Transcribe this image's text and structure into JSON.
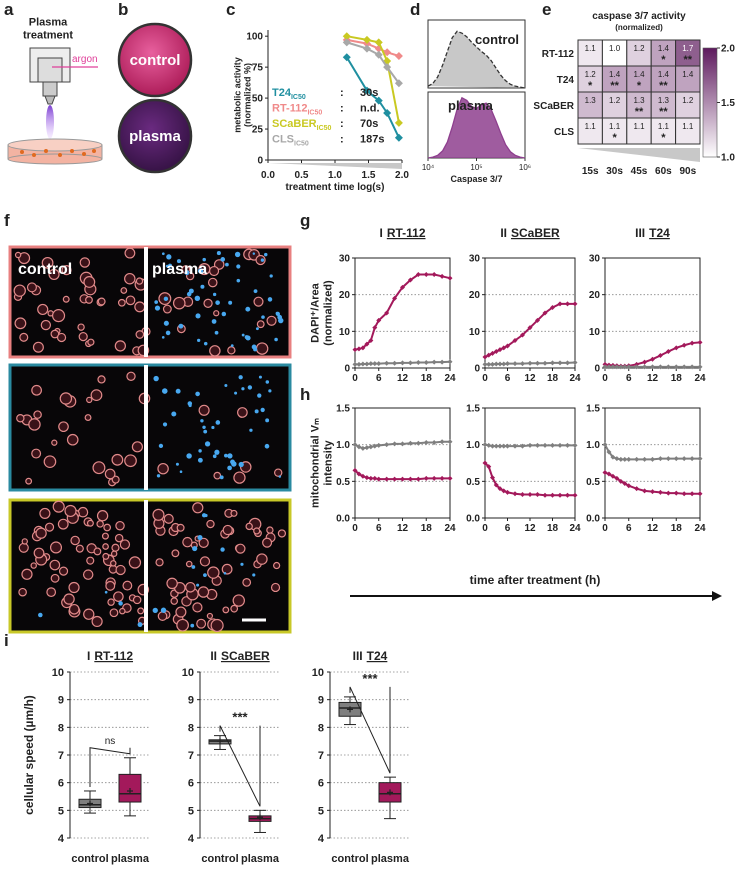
{
  "figure": {
    "panel_labels": [
      "a",
      "b",
      "c",
      "d",
      "e",
      "f",
      "g",
      "h",
      "i"
    ],
    "plasma_device": {
      "title": "Plasma treatment",
      "gas": "argon"
    },
    "dishes": [
      "control",
      "plasma"
    ],
    "micrographs": [
      "control",
      "plasma"
    ],
    "time_axis_label": "time after treatment (h)"
  },
  "chart_data": [
    {
      "type": "line",
      "xlabel": "treatment time log(s)",
      "ylabel": "metabolic activity (normalized %)",
      "x": [
        1.176,
        1.477,
        1.653,
        1.778,
        1.954
      ],
      "series": [
        {
          "name": "T24",
          "color": "#1f8fa0",
          "values": [
            83,
            56,
            48,
            38,
            18
          ],
          "ic50": "30s"
        },
        {
          "name": "RT-112",
          "color": "#f08a8a",
          "values": [
            97,
            94,
            90,
            87,
            84
          ],
          "ic50": "n.d."
        },
        {
          "name": "SCaBER",
          "color": "#c9c922",
          "values": [
            100,
            97,
            95,
            80,
            30
          ],
          "ic50": "70s"
        },
        {
          "name": "CLS",
          "color": "#a8a8a8",
          "values": [
            95,
            90,
            85,
            75,
            62
          ],
          "ic50": "187s"
        }
      ],
      "ic50_subscript": "IC50",
      "separator": ":",
      "xlim": [
        0,
        2
      ],
      "xticks": [
        {
          "value": 0,
          "label": "0.0"
        },
        0.5,
        {
          "value": 1,
          "label": "1.0"
        },
        1.5,
        {
          "value": 2,
          "label": "2.0"
        }
      ],
      "ylim": [
        0,
        105
      ],
      "yticks": [
        0,
        25,
        50,
        75,
        100
      ],
      "grid": false
    },
    {
      "type": "area",
      "xlabel": "Caspase 3/7",
      "xscale": "log",
      "xlim": [
        10000,
        1000000
      ],
      "xticks": [
        {
          "value": 10000,
          "label": "10⁴"
        },
        {
          "value": 100000,
          "label": "10⁵"
        },
        {
          "value": 1000000,
          "label": "10⁶"
        }
      ],
      "ylim": [
        0,
        70
      ],
      "x": [
        10000,
        12600,
        15800,
        20000,
        25100,
        31600,
        39800,
        50100,
        63100,
        79400,
        100000,
        126000,
        158000,
        200000,
        251000,
        316000,
        398000,
        501000,
        631000,
        794000,
        1000000
      ],
      "series": [
        {
          "name": "control",
          "color": "#9a9a9a",
          "dashed": true,
          "values": [
            2,
            5,
            12,
            25,
            40,
            55,
            62,
            60,
            56,
            50,
            45,
            40,
            36,
            30,
            22,
            14,
            8,
            4,
            2,
            1,
            0
          ]
        },
        {
          "name": "plasma",
          "color": "#8e3f8e",
          "dashed": false,
          "values": [
            0,
            1,
            3,
            8,
            18,
            35,
            55,
            68,
            65,
            58,
            56,
            60,
            62,
            55,
            42,
            28,
            15,
            7,
            3,
            1,
            0
          ]
        }
      ]
    },
    {
      "type": "heatmap",
      "title": "caspase 3/7 activity",
      "subtitle": "(normalized)",
      "rows": [
        "RT-112",
        "T24",
        "SCaBER",
        "CLS"
      ],
      "columns": [
        "15s",
        "30s",
        "45s",
        "60s",
        "90s"
      ],
      "values": [
        [
          1.1,
          1.0,
          1.2,
          1.4,
          1.7
        ],
        [
          1.2,
          1.4,
          1.4,
          1.4,
          1.4
        ],
        [
          1.3,
          1.2,
          1.3,
          1.3,
          1.2
        ],
        [
          1.1,
          1.1,
          1.1,
          1.1,
          1.1
        ]
      ],
      "value_labels": [
        [
          "1.1",
          "1.0",
          "1.2",
          "1.4",
          "1.7"
        ],
        [
          "1.2",
          "1.4",
          "1.4",
          "1.4",
          "1.4"
        ],
        [
          "1.3",
          "1.2",
          "1.3",
          "1.3",
          "1.2"
        ],
        [
          "1.1",
          "1.1",
          "1.1",
          "1.1",
          "1.1"
        ]
      ],
      "annotations": [
        [
          null,
          null,
          null,
          "*",
          "**"
        ],
        [
          "*",
          "**",
          "*",
          "**",
          null
        ],
        [
          null,
          null,
          "**",
          "**",
          null
        ],
        [
          null,
          "*",
          null,
          "*",
          null
        ]
      ],
      "zlim": [
        1,
        2
      ],
      "colorbar_ticks": [
        {
          "value": 1,
          "label": "1.0"
        },
        1.5,
        {
          "value": 2,
          "label": "2.0"
        }
      ],
      "low_color": "#ffffff",
      "high_color": "#5e1a5e"
    },
    {
      "type": "line",
      "title_index": "I",
      "title": "RT-112",
      "ylabel": "DAPI⁺/Area (normalized)",
      "x": [
        0,
        1,
        2,
        3,
        4,
        5,
        6,
        8,
        10,
        12,
        14,
        16,
        18,
        20,
        22,
        24
      ],
      "series": [
        {
          "color": "#a3195b",
          "values": [
            5,
            5.2,
            5.5,
            6.5,
            7.5,
            11,
            13,
            15,
            19,
            22,
            24,
            25.5,
            25.5,
            25.5,
            25,
            24.5
          ]
        },
        {
          "color": "#7f7f7f",
          "values": [
            1,
            1,
            1.1,
            1.1,
            1.2,
            1.2,
            1.2,
            1.3,
            1.3,
            1.4,
            1.4,
            1.5,
            1.5,
            1.6,
            1.6,
            1.7
          ]
        }
      ],
      "xlim": [
        0,
        24
      ],
      "xticks": [
        0,
        6,
        12,
        18,
        24
      ],
      "ylim": [
        0,
        30
      ],
      "yticks": [
        0,
        10,
        20,
        30
      ],
      "grid": true
    },
    {
      "type": "line",
      "title_index": "II",
      "title": "SCaBER",
      "x": [
        0,
        1,
        2,
        3,
        4,
        5,
        6,
        8,
        10,
        12,
        14,
        16,
        18,
        20,
        22,
        24
      ],
      "series": [
        {
          "color": "#a3195b",
          "values": [
            3,
            3.5,
            4,
            4.5,
            5,
            5.5,
            6,
            7.5,
            9,
            11,
            13,
            15,
            16.5,
            17.5,
            17.5,
            17.5
          ]
        },
        {
          "color": "#7f7f7f",
          "values": [
            1,
            1,
            1,
            1.1,
            1.1,
            1.1,
            1.2,
            1.2,
            1.2,
            1.3,
            1.3,
            1.3,
            1.4,
            1.4,
            1.4,
            1.5
          ]
        }
      ],
      "xlim": [
        0,
        24
      ],
      "xticks": [
        0,
        6,
        12,
        18,
        24
      ],
      "ylim": [
        0,
        30
      ],
      "yticks": [
        0,
        10,
        20,
        30
      ],
      "grid": true
    },
    {
      "type": "line",
      "title_index": "III",
      "title": "T24",
      "x": [
        0,
        1,
        2,
        3,
        4,
        5,
        6,
        8,
        10,
        12,
        14,
        16,
        18,
        20,
        22,
        24
      ],
      "series": [
        {
          "color": "#a3195b",
          "values": [
            1,
            0.8,
            0.7,
            0.6,
            0.5,
            0.5,
            0.6,
            1,
            1.6,
            2.4,
            3.4,
            4.5,
            5.5,
            6.2,
            6.8,
            7
          ]
        },
        {
          "color": "#7f7f7f",
          "values": [
            0.3,
            0.3,
            0.3,
            0.3,
            0.3,
            0.3,
            0.3,
            0.3,
            0.3,
            0.3,
            0.3,
            0.3,
            0.3,
            0.3,
            0.3,
            0.3
          ]
        }
      ],
      "xlim": [
        0,
        24
      ],
      "xticks": [
        0,
        6,
        12,
        18,
        24
      ],
      "ylim": [
        0,
        30
      ],
      "yticks": [
        0,
        10,
        20,
        30
      ],
      "grid": true
    },
    {
      "type": "line",
      "ylabel": "mitochondrial Vₘ intensity",
      "x": [
        0,
        1,
        2,
        3,
        4,
        5,
        6,
        8,
        10,
        12,
        14,
        16,
        18,
        20,
        22,
        24
      ],
      "series": [
        {
          "color": "#7f7f7f",
          "values": [
            1.0,
            0.97,
            0.95,
            0.96,
            0.97,
            0.98,
            0.99,
            1.0,
            1.01,
            1.01,
            1.02,
            1.02,
            1.03,
            1.03,
            1.04,
            1.04
          ]
        },
        {
          "color": "#a3195b",
          "values": [
            0.65,
            0.6,
            0.57,
            0.55,
            0.54,
            0.54,
            0.53,
            0.53,
            0.53,
            0.53,
            0.53,
            0.53,
            0.54,
            0.54,
            0.54,
            0.54
          ]
        }
      ],
      "xlim": [
        0,
        24
      ],
      "xticks": [
        0,
        6,
        12,
        18,
        24
      ],
      "ylim": [
        0,
        1.5
      ],
      "yticks": [
        {
          "value": 0,
          "label": "0.0"
        },
        0.5,
        {
          "value": 1,
          "label": "1.0"
        },
        1.5
      ],
      "grid": true
    },
    {
      "type": "line",
      "x": [
        0,
        1,
        2,
        3,
        4,
        5,
        6,
        8,
        10,
        12,
        14,
        16,
        18,
        20,
        22,
        24
      ],
      "series": [
        {
          "color": "#7f7f7f",
          "values": [
            1.0,
            0.99,
            0.98,
            0.98,
            0.98,
            0.98,
            0.98,
            0.98,
            0.98,
            0.99,
            0.99,
            0.99,
            0.99,
            0.99,
            0.99,
            0.99
          ]
        },
        {
          "color": "#a3195b",
          "values": [
            0.75,
            0.7,
            0.55,
            0.45,
            0.4,
            0.37,
            0.35,
            0.33,
            0.32,
            0.32,
            0.32,
            0.31,
            0.31,
            0.31,
            0.31,
            0.31
          ]
        }
      ],
      "xlim": [
        0,
        24
      ],
      "xticks": [
        0,
        6,
        12,
        18,
        24
      ],
      "ylim": [
        0,
        1.5
      ],
      "yticks": [
        {
          "value": 0,
          "label": "0.0"
        },
        0.5,
        {
          "value": 1,
          "label": "1.0"
        },
        1.5
      ],
      "grid": true
    },
    {
      "type": "line",
      "x": [
        0,
        1,
        2,
        3,
        4,
        5,
        6,
        8,
        10,
        12,
        14,
        16,
        18,
        20,
        22,
        24
      ],
      "series": [
        {
          "color": "#7f7f7f",
          "values": [
            1.0,
            0.9,
            0.83,
            0.81,
            0.8,
            0.8,
            0.8,
            0.8,
            0.8,
            0.8,
            0.81,
            0.81,
            0.81,
            0.81,
            0.81,
            0.81
          ]
        },
        {
          "color": "#a3195b",
          "values": [
            0.62,
            0.6,
            0.57,
            0.54,
            0.5,
            0.47,
            0.44,
            0.4,
            0.37,
            0.36,
            0.35,
            0.34,
            0.34,
            0.33,
            0.33,
            0.33
          ]
        }
      ],
      "xlim": [
        0,
        24
      ],
      "xticks": [
        0,
        6,
        12,
        18,
        24
      ],
      "ylim": [
        0,
        1.5
      ],
      "yticks": [
        {
          "value": 0,
          "label": "0.0"
        },
        0.5,
        {
          "value": 1,
          "label": "1.0"
        },
        1.5
      ],
      "grid": true
    },
    {
      "type": "box",
      "title_index": "I",
      "title": "RT-112",
      "ylabel": "cellular speed (µm/h)",
      "categories": [
        "control",
        "plasma"
      ],
      "boxes": [
        {
          "min": 4.9,
          "q1": 5.1,
          "median": 5.2,
          "q3": 5.4,
          "max": 5.7,
          "mean": 5.25,
          "color": "#7f7f7f"
        },
        {
          "min": 4.8,
          "q1": 5.3,
          "median": 5.6,
          "q3": 6.3,
          "max": 6.9,
          "mean": 5.7,
          "color": "#a3195b"
        }
      ],
      "significance": "ns",
      "ylim": [
        4,
        10
      ],
      "yticks": [
        4,
        5,
        6,
        7,
        8,
        9,
        10
      ],
      "grid": true
    },
    {
      "type": "box",
      "title_index": "II",
      "title": "SCaBER",
      "categories": [
        "control",
        "plasma"
      ],
      "boxes": [
        {
          "min": 7.2,
          "q1": 7.4,
          "median": 7.5,
          "q3": 7.55,
          "max": 7.7,
          "mean": 7.5,
          "color": "#7f7f7f"
        },
        {
          "min": 4.2,
          "q1": 4.6,
          "median": 4.7,
          "q3": 4.8,
          "max": 5.0,
          "mean": 4.75,
          "color": "#a3195b"
        }
      ],
      "significance": "***",
      "ylim": [
        4,
        10
      ],
      "yticks": [
        4,
        5,
        6,
        7,
        8,
        9,
        10
      ],
      "grid": true
    },
    {
      "type": "box",
      "title_index": "III",
      "title": "T24",
      "categories": [
        "control",
        "plasma"
      ],
      "boxes": [
        {
          "min": 8.1,
          "q1": 8.4,
          "median": 8.7,
          "q3": 8.9,
          "max": 9.1,
          "mean": 8.65,
          "color": "#7f7f7f"
        },
        {
          "min": 4.7,
          "q1": 5.3,
          "median": 5.6,
          "q3": 6.0,
          "max": 6.2,
          "mean": 5.65,
          "color": "#a3195b"
        }
      ],
      "significance": "***",
      "ylim": [
        4,
        10
      ],
      "yticks": [
        4,
        5,
        6,
        7,
        8,
        9,
        10
      ],
      "grid": true
    }
  ]
}
